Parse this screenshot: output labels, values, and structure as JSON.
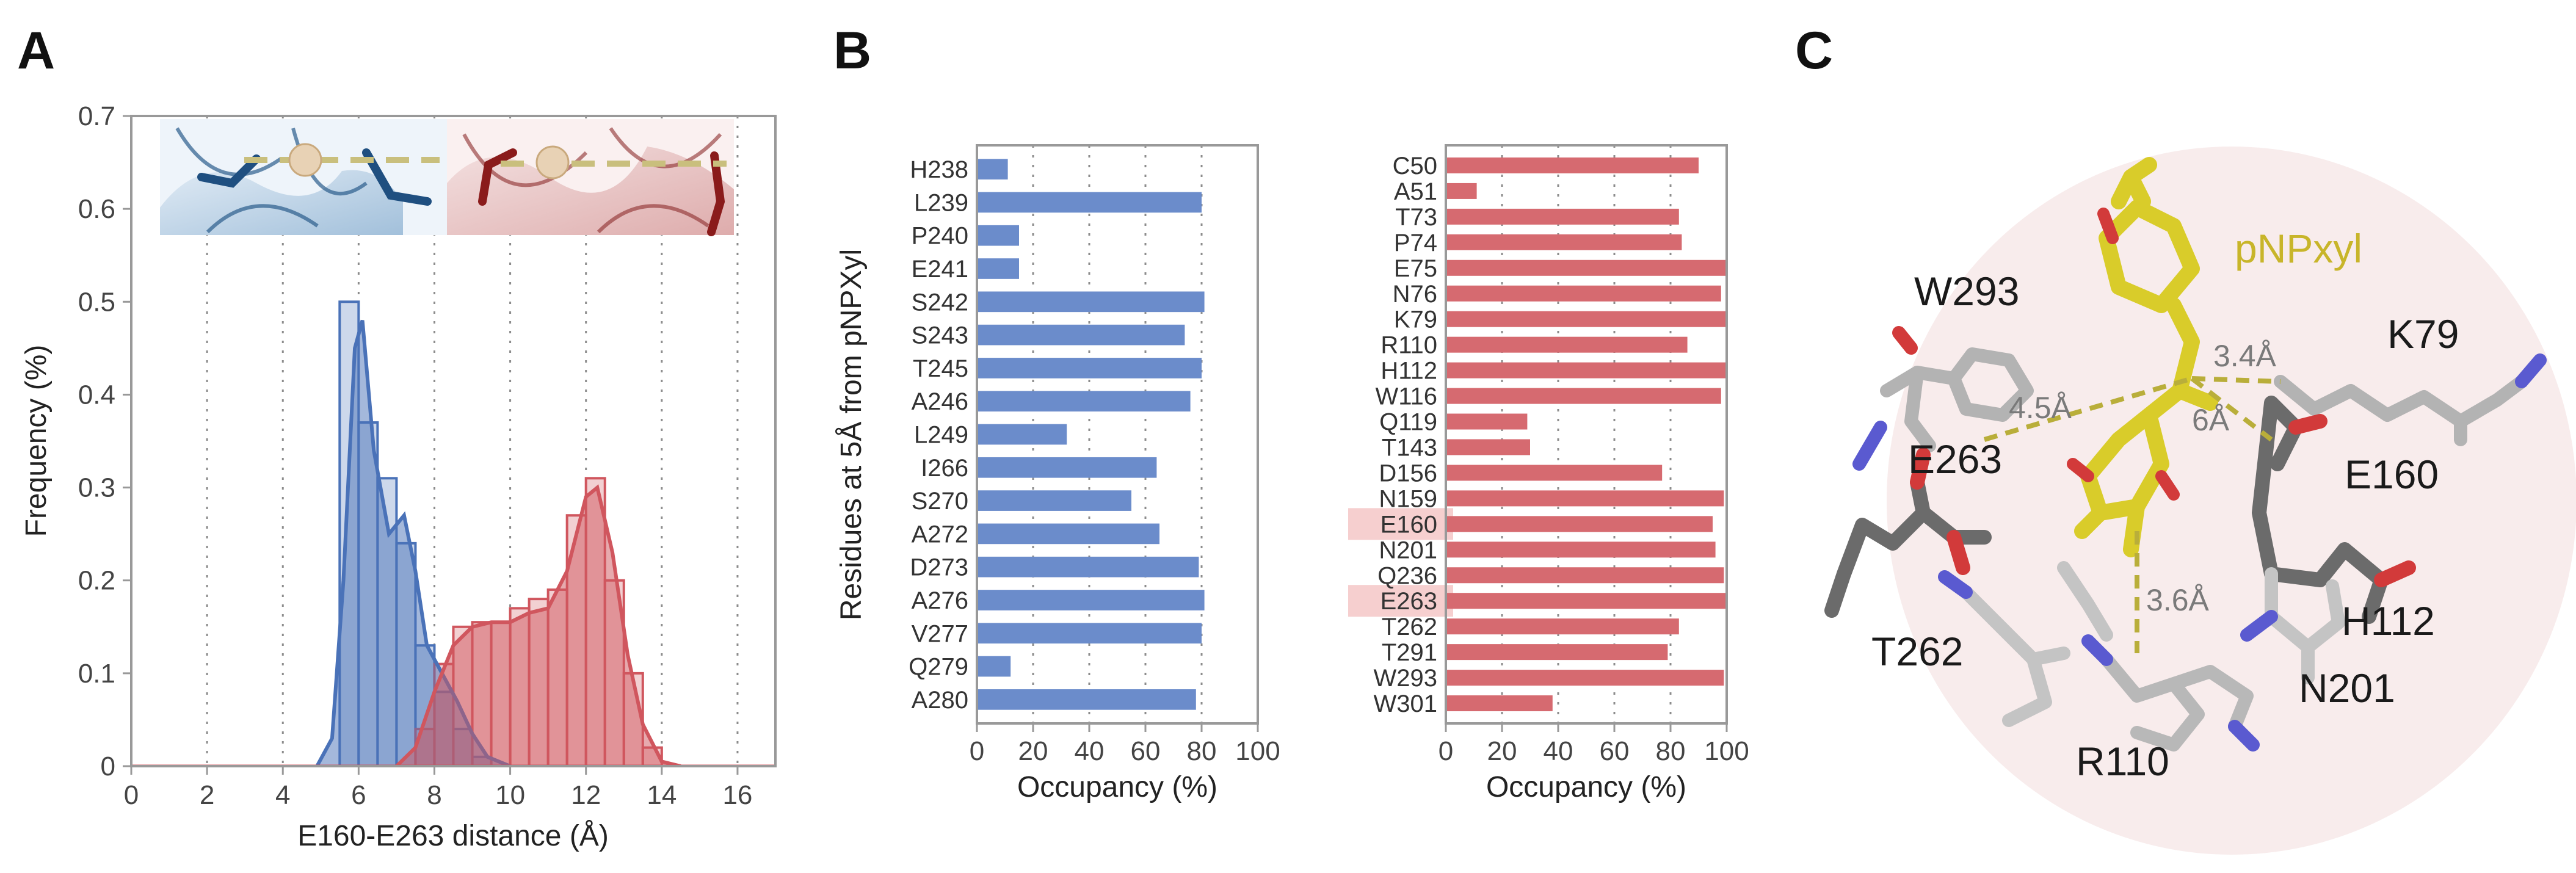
{
  "panels": {
    "a": "A",
    "b": "B",
    "c": "C"
  },
  "colors": {
    "blue": "#4a72b8",
    "red": "#d0565e",
    "bar_blue": "#6b8ccb",
    "bar_red": "#d66a70",
    "ligand": "#d9cc2a",
    "highlight": "#f6cfcf"
  },
  "chart_data": [
    {
      "type": "area",
      "title": "",
      "xlabel": "E160-E263 distance (Å)",
      "ylabel": "Frequency (%)",
      "xlim": [
        0,
        17
      ],
      "ylim": [
        0,
        0.7
      ],
      "xticks": [
        0,
        2,
        4,
        6,
        8,
        10,
        12,
        14,
        16
      ],
      "yticks": [
        0,
        0.1,
        0.2,
        0.3,
        0.4,
        0.5,
        0.6,
        0.7
      ],
      "xtick_labels": [
        "0",
        "2",
        "4",
        "6",
        "8",
        "10",
        "12",
        "14",
        "16"
      ],
      "ytick_labels": [
        "0",
        "0.1",
        "0.2",
        "0.3",
        "0.4",
        "0.5",
        "0.6",
        "0.7"
      ],
      "grid": "vertical dotted",
      "series": [
        {
          "name": "blue state",
          "bin_width": 0.5,
          "bin_centers": [
            5.75,
            6.25,
            6.75,
            7.25,
            7.75,
            8.25,
            8.75,
            9.25
          ],
          "values": [
            0.5,
            0.37,
            0.31,
            0.24,
            0.13,
            0.08,
            0.04,
            0.01
          ],
          "curve_x": [
            4.9,
            5.3,
            5.6,
            5.9,
            6.1,
            6.4,
            6.8,
            7.2,
            7.5,
            7.8,
            8.2,
            8.6,
            9.0,
            9.4,
            10.0
          ],
          "curve_y": [
            0,
            0.03,
            0.2,
            0.45,
            0.48,
            0.34,
            0.25,
            0.27,
            0.21,
            0.13,
            0.1,
            0.07,
            0.035,
            0.01,
            0
          ]
        },
        {
          "name": "red state",
          "bin_width": 0.5,
          "bin_centers": [
            7.75,
            8.25,
            8.75,
            9.25,
            9.75,
            10.25,
            10.75,
            11.25,
            11.75,
            12.25,
            12.75,
            13.25,
            13.75
          ],
          "values": [
            0.04,
            0.11,
            0.15,
            0.155,
            0.155,
            0.17,
            0.18,
            0.19,
            0.27,
            0.31,
            0.2,
            0.1,
            0.02
          ],
          "curve_x": [
            7.0,
            7.5,
            8.0,
            8.5,
            9.0,
            9.5,
            10.0,
            10.5,
            11.0,
            11.5,
            12.0,
            12.3,
            12.7,
            13.1,
            13.5,
            14.0,
            14.5
          ],
          "curve_y": [
            0,
            0.02,
            0.08,
            0.13,
            0.15,
            0.155,
            0.155,
            0.165,
            0.17,
            0.21,
            0.29,
            0.3,
            0.23,
            0.12,
            0.045,
            0.005,
            0
          ]
        }
      ]
    },
    {
      "type": "bar",
      "orientation": "horizontal",
      "title": "",
      "xlabel": "Occupancy (%)",
      "ylabel": "Residues at 5Å from pNPXyl",
      "xlim": [
        0,
        100
      ],
      "xticks": [
        0,
        20,
        40,
        60,
        80,
        100
      ],
      "xtick_labels": [
        "0",
        "20",
        "40",
        "60",
        "80",
        "100"
      ],
      "grid": "vertical dotted",
      "categories": [
        "H238",
        "L239",
        "P240",
        "E241",
        "S242",
        "S243",
        "T245",
        "A246",
        "L249",
        "I266",
        "S270",
        "A272",
        "D273",
        "A276",
        "V277",
        "Q279",
        "A280"
      ],
      "values": [
        11,
        80,
        15,
        15,
        81,
        74,
        80,
        76,
        32,
        64,
        55,
        65,
        79,
        81,
        80,
        12,
        78
      ]
    },
    {
      "type": "bar",
      "orientation": "horizontal",
      "title": "",
      "xlabel": "Occupancy (%)",
      "xlim": [
        0,
        100
      ],
      "xticks": [
        0,
        20,
        40,
        60,
        80,
        100
      ],
      "xtick_labels": [
        "0",
        "20",
        "40",
        "60",
        "80",
        "100"
      ],
      "grid": "vertical dotted",
      "highlighted": [
        "E160",
        "E263"
      ],
      "categories": [
        "C50",
        "A51",
        "T73",
        "P74",
        "E75",
        "N76",
        "K79",
        "R110",
        "H112",
        "W116",
        "Q119",
        "T143",
        "D156",
        "N159",
        "E160",
        "N201",
        "Q236",
        "E263",
        "T262",
        "T291",
        "W293",
        "W301"
      ],
      "values": [
        90,
        11,
        83,
        84,
        100,
        98,
        100,
        86,
        100,
        98,
        29,
        30,
        77,
        99,
        95,
        96,
        99,
        100,
        83,
        79,
        99,
        38
      ]
    }
  ],
  "structure": {
    "ligand": "pNPxyl",
    "residues": [
      "W293",
      "K79",
      "E263",
      "E160",
      "H112",
      "T262",
      "N201",
      "R110"
    ],
    "distances": [
      "4.5Å",
      "3.4Å",
      "6Å",
      "3.6Å"
    ]
  }
}
